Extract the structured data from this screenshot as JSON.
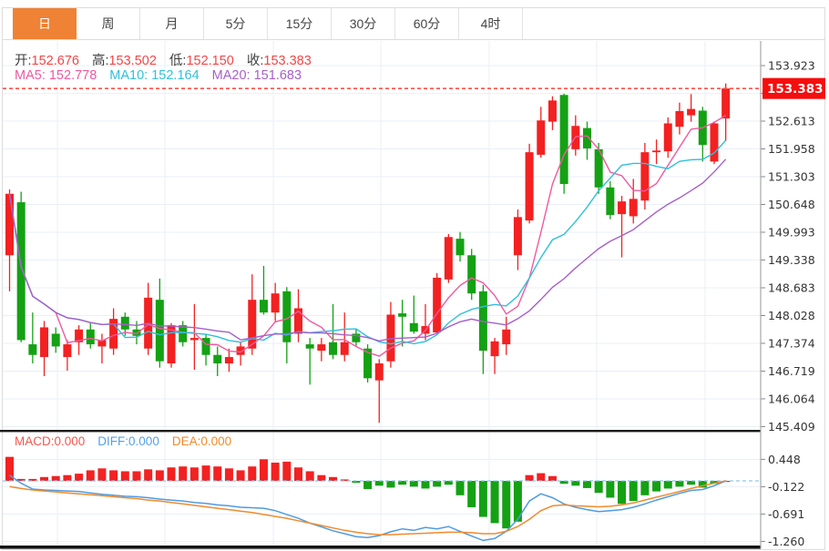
{
  "tabs": {
    "items": [
      {
        "label": "日",
        "active": true
      },
      {
        "label": "周",
        "active": false
      },
      {
        "label": "月",
        "active": false
      },
      {
        "label": "5分",
        "active": false
      },
      {
        "label": "15分",
        "active": false
      },
      {
        "label": "30分",
        "active": false
      },
      {
        "label": "60分",
        "active": false
      },
      {
        "label": "4时",
        "active": false
      }
    ],
    "active_color": "#ef8235"
  },
  "legend": {
    "ohlc": [
      {
        "label": "开:",
        "value": "152.676"
      },
      {
        "label": "高:",
        "value": "153.502"
      },
      {
        "label": "低:",
        "value": "152.150"
      },
      {
        "label": "收:",
        "value": "153.383"
      }
    ],
    "ohlc_value_color": "#f54545",
    "ma": [
      {
        "label": "MA5:",
        "value": "152.778",
        "color": "#f0599f"
      },
      {
        "label": "MA10:",
        "value": "152.164",
        "color": "#2fc0db"
      },
      {
        "label": "MA20:",
        "value": "151.683",
        "color": "#a75fc9"
      }
    ]
  },
  "macd_legend": [
    {
      "label": "MACD:",
      "value": "0.000",
      "color": "#f4564e"
    },
    {
      "label": "DIFF:",
      "value": "0.000",
      "color": "#53a0e8"
    },
    {
      "label": "DEA:",
      "value": "0.000",
      "color": "#f08a2b"
    }
  ],
  "price_axis": {
    "ticks": [
      {
        "label": "153.923",
        "v": 153.923
      },
      {
        "label": "153.268",
        "v": 153.268
      },
      {
        "label": "152.613",
        "v": 152.613
      },
      {
        "label": "151.958",
        "v": 151.958
      },
      {
        "label": "151.303",
        "v": 151.303
      },
      {
        "label": "150.648",
        "v": 150.648
      },
      {
        "label": "149.993",
        "v": 149.993
      },
      {
        "label": "149.338",
        "v": 149.338
      },
      {
        "label": "148.683",
        "v": 148.683
      },
      {
        "label": "148.028",
        "v": 148.028
      },
      {
        "label": "147.374",
        "v": 147.374
      },
      {
        "label": "146.719",
        "v": 146.719
      },
      {
        "label": "146.064",
        "v": 146.064
      },
      {
        "label": "145.409",
        "v": 145.409
      }
    ],
    "current_price": "153.383",
    "current_price_value": 153.383,
    "current_price_box_color": "#f60d0d"
  },
  "macd_axis": {
    "ticks": [
      {
        "label": "0.448",
        "v": 0.448
      },
      {
        "label": "-0.122",
        "v": -0.122
      },
      {
        "label": "-0.691",
        "v": -0.691
      },
      {
        "label": "-1.260",
        "v": -1.26
      }
    ]
  },
  "chart_data": {
    "type": "candlestick",
    "convention": "red-up-green-down",
    "colors": {
      "up": "#f32121",
      "down": "#14a114",
      "ma5": "#f0599f",
      "ma10": "#2fc0db",
      "ma20": "#a75fc9",
      "diff_line": "#4f9be0",
      "dea_line": "#ef8b2e",
      "dashed_price_line": "#ff5147",
      "macd_zero_line": "#8ec6ea",
      "grid": "#eaeff7",
      "axis": "#a8a8a8"
    },
    "price_range": [
      145.409,
      154.1
    ],
    "ma_periods": [
      5,
      10,
      20
    ],
    "candles": [
      [
        149.45,
        151.0,
        148.6,
        150.9
      ],
      [
        150.7,
        150.95,
        147.4,
        147.45
      ],
      [
        147.35,
        148.1,
        146.9,
        147.1
      ],
      [
        147.05,
        147.9,
        146.6,
        147.75
      ],
      [
        147.6,
        147.75,
        147.15,
        147.3
      ],
      [
        147.05,
        147.45,
        146.73,
        147.35
      ],
      [
        147.4,
        147.8,
        147.1,
        147.7
      ],
      [
        147.7,
        147.85,
        147.25,
        147.35
      ],
      [
        147.3,
        147.6,
        146.9,
        147.45
      ],
      [
        147.25,
        148.2,
        147.1,
        147.95
      ],
      [
        148.0,
        148.1,
        147.55,
        147.7
      ],
      [
        147.7,
        147.9,
        147.35,
        147.55
      ],
      [
        147.25,
        148.8,
        147.1,
        148.45
      ],
      [
        148.4,
        148.9,
        146.8,
        146.95
      ],
      [
        146.9,
        147.85,
        146.8,
        147.8
      ],
      [
        147.8,
        147.9,
        147.3,
        147.4
      ],
      [
        147.45,
        148.3,
        146.75,
        147.5
      ],
      [
        147.5,
        147.6,
        146.85,
        147.1
      ],
      [
        147.1,
        147.3,
        146.6,
        146.9
      ],
      [
        146.9,
        147.25,
        146.7,
        147.05
      ],
      [
        147.1,
        147.4,
        146.85,
        147.3
      ],
      [
        147.25,
        149.0,
        147.1,
        148.4
      ],
      [
        148.4,
        149.2,
        148.05,
        148.1
      ],
      [
        148.1,
        148.8,
        147.9,
        148.55
      ],
      [
        148.6,
        148.7,
        146.9,
        147.4
      ],
      [
        147.6,
        148.65,
        147.4,
        148.2
      ],
      [
        147.35,
        147.5,
        146.4,
        147.25
      ],
      [
        147.2,
        147.5,
        146.95,
        147.35
      ],
      [
        147.4,
        148.3,
        147.0,
        147.1
      ],
      [
        147.1,
        148.1,
        146.95,
        147.4
      ],
      [
        147.6,
        147.7,
        147.3,
        147.4
      ],
      [
        147.25,
        147.35,
        146.45,
        146.55
      ],
      [
        146.5,
        147.0,
        145.5,
        146.9
      ],
      [
        146.95,
        148.35,
        146.8,
        148.05
      ],
      [
        148.08,
        148.4,
        147.3,
        148.0
      ],
      [
        147.85,
        148.5,
        147.6,
        147.65
      ],
      [
        147.6,
        148.3,
        147.45,
        147.78
      ],
      [
        147.63,
        149.03,
        147.6,
        148.92
      ],
      [
        148.88,
        149.95,
        148.8,
        149.88
      ],
      [
        149.84,
        150.0,
        149.3,
        149.45
      ],
      [
        149.45,
        149.6,
        148.4,
        148.55
      ],
      [
        148.6,
        148.75,
        146.65,
        147.2
      ],
      [
        147.07,
        147.5,
        146.65,
        147.42
      ],
      [
        147.35,
        148.0,
        147.1,
        147.7
      ],
      [
        149.45,
        150.53,
        149.1,
        150.35
      ],
      [
        150.27,
        152.08,
        150.2,
        151.88
      ],
      [
        151.82,
        152.95,
        151.75,
        152.63
      ],
      [
        152.6,
        153.2,
        152.4,
        153.1
      ],
      [
        153.23,
        153.26,
        150.9,
        151.13
      ],
      [
        151.95,
        152.75,
        151.8,
        152.5
      ],
      [
        152.45,
        152.6,
        151.7,
        151.97
      ],
      [
        151.95,
        152.1,
        150.9,
        151.05
      ],
      [
        151.05,
        151.2,
        150.3,
        150.4
      ],
      [
        150.42,
        150.85,
        149.4,
        150.72
      ],
      [
        150.37,
        151.25,
        150.2,
        150.78
      ],
      [
        150.74,
        152.1,
        150.53,
        151.88
      ],
      [
        151.88,
        152.18,
        151.6,
        151.92
      ],
      [
        151.9,
        152.7,
        151.75,
        152.56
      ],
      [
        152.48,
        153.05,
        152.3,
        152.85
      ],
      [
        152.75,
        153.25,
        152.6,
        152.9
      ],
      [
        152.86,
        152.95,
        151.66,
        152.05
      ],
      [
        151.66,
        152.6,
        151.6,
        152.56
      ],
      [
        152.676,
        153.502,
        152.15,
        153.383
      ]
    ],
    "macd": {
      "hist": [
        0.5,
        0.04,
        0.04,
        0.08,
        0.1,
        0.12,
        0.15,
        0.22,
        0.26,
        0.22,
        0.2,
        0.2,
        0.24,
        0.22,
        0.28,
        0.3,
        0.28,
        0.32,
        0.3,
        0.26,
        0.22,
        0.3,
        0.45,
        0.38,
        0.4,
        0.28,
        0.2,
        0.12,
        0.08,
        0.03,
        -0.04,
        -0.17,
        -0.1,
        -0.14,
        -0.08,
        -0.12,
        -0.16,
        -0.12,
        -0.08,
        -0.3,
        -0.55,
        -0.75,
        -0.88,
        -0.99,
        -0.85,
        0.12,
        0.16,
        0.1,
        -0.06,
        -0.1,
        -0.15,
        -0.25,
        -0.35,
        -0.48,
        -0.42,
        -0.3,
        -0.22,
        -0.16,
        -0.12,
        -0.08,
        -0.14,
        -0.06,
        0.0
      ],
      "diff": [
        0.12,
        -0.05,
        -0.17,
        -0.19,
        -0.2,
        -0.21,
        -0.22,
        -0.25,
        -0.28,
        -0.3,
        -0.32,
        -0.33,
        -0.35,
        -0.38,
        -0.4,
        -0.42,
        -0.45,
        -0.47,
        -0.5,
        -0.52,
        -0.55,
        -0.56,
        -0.57,
        -0.62,
        -0.7,
        -0.78,
        -0.88,
        -0.96,
        -1.04,
        -1.1,
        -1.16,
        -1.18,
        -1.14,
        -1.06,
        -1.0,
        -1.03,
        -0.97,
        -1.0,
        -0.95,
        -1.05,
        -1.15,
        -1.24,
        -1.2,
        -1.05,
        -0.8,
        -0.42,
        -0.27,
        -0.35,
        -0.48,
        -0.55,
        -0.6,
        -0.64,
        -0.62,
        -0.6,
        -0.55,
        -0.48,
        -0.4,
        -0.33,
        -0.26,
        -0.2,
        -0.18,
        -0.1,
        0.0
      ],
      "dea": [
        -0.12,
        -0.16,
        -0.19,
        -0.21,
        -0.23,
        -0.25,
        -0.27,
        -0.29,
        -0.31,
        -0.33,
        -0.35,
        -0.37,
        -0.4,
        -0.42,
        -0.45,
        -0.48,
        -0.51,
        -0.54,
        -0.57,
        -0.6,
        -0.63,
        -0.66,
        -0.7,
        -0.74,
        -0.78,
        -0.83,
        -0.88,
        -0.93,
        -0.98,
        -1.03,
        -1.07,
        -1.1,
        -1.12,
        -1.12,
        -1.11,
        -1.1,
        -1.09,
        -1.08,
        -1.07,
        -1.07,
        -1.08,
        -1.1,
        -1.1,
        -1.05,
        -0.95,
        -0.8,
        -0.62,
        -0.52,
        -0.5,
        -0.52,
        -0.53,
        -0.54,
        -0.53,
        -0.5,
        -0.46,
        -0.4,
        -0.34,
        -0.28,
        -0.22,
        -0.16,
        -0.1,
        -0.05,
        0.0
      ]
    }
  }
}
